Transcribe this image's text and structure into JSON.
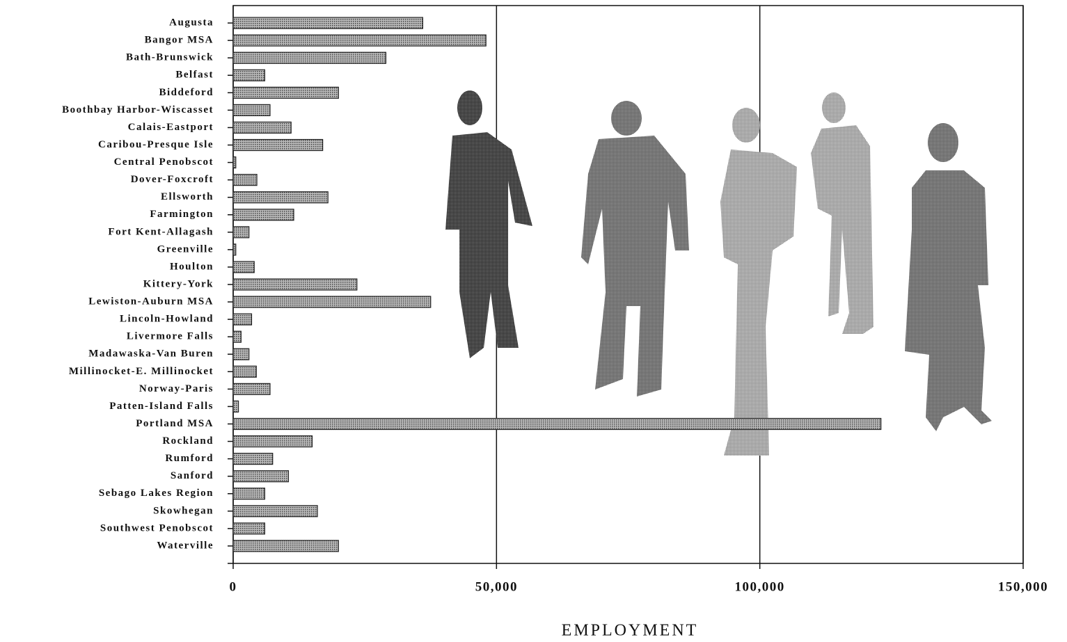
{
  "chart_data": {
    "type": "bar",
    "orientation": "horizontal",
    "x_label": "EMPLOYMENT",
    "categories": [
      "Augusta",
      "Bangor MSA",
      "Bath-Brunswick",
      "Belfast",
      "Biddeford",
      "Boothbay Harbor-Wiscasset",
      "Calais-Eastport",
      "Caribou-Presque Isle",
      "Central Penobscot",
      "Dover-Foxcroft",
      "Ellsworth",
      "Farmington",
      "Fort Kent-Allagash",
      "Greenville",
      "Houlton",
      "Kittery-York",
      "Lewiston-Auburn MSA",
      "Lincoln-Howland",
      "Livermore Falls",
      "Madawaska-Van Buren",
      "Millinocket-E. Millinocket",
      "Norway-Paris",
      "Patten-Island Falls",
      "Portland MSA",
      "Rockland",
      "Rumford",
      "Sanford",
      "Sebago Lakes Region",
      "Skowhegan",
      "Southwest Penobscot",
      "Waterville"
    ],
    "values": [
      36000,
      48000,
      29000,
      6000,
      20000,
      7000,
      11000,
      17000,
      500,
      4500,
      18000,
      11500,
      3000,
      500,
      4000,
      23500,
      37500,
      3500,
      1500,
      3000,
      4400,
      7000,
      1000,
      123000,
      15000,
      7500,
      10500,
      6000,
      16000,
      6000,
      20000
    ],
    "color": "#8a8a8a",
    "xlim": [
      0,
      150000
    ],
    "xticks": [
      0,
      {
        "value": 50000,
        "label": "50,000"
      },
      {
        "value": 100000,
        "label": "100,000"
      },
      {
        "value": 150000,
        "label": "150,000"
      }
    ],
    "grid": true
  }
}
